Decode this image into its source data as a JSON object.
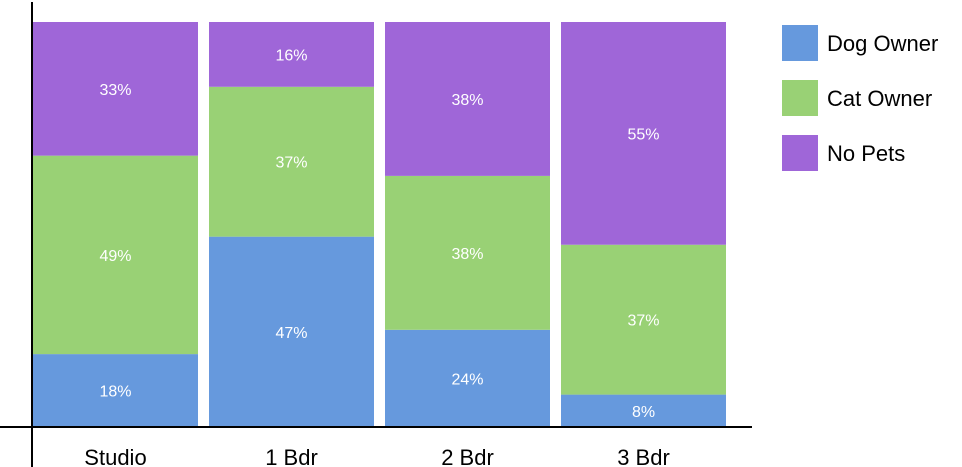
{
  "chart_data": {
    "type": "bar",
    "stacked": true,
    "normalized": true,
    "categories": [
      "Studio",
      "1 Bdr",
      "2 Bdr",
      "3 Bdr"
    ],
    "series": [
      {
        "name": "Dog Owner",
        "color": "#6699dd",
        "values": [
          18,
          47,
          24,
          8
        ]
      },
      {
        "name": "Cat Owner",
        "color": "#99d175",
        "values": [
          49,
          37,
          38,
          37
        ]
      },
      {
        "name": "No Pets",
        "color": "#9f66d8",
        "values": [
          33,
          16,
          38,
          55
        ]
      }
    ],
    "value_suffix": "%",
    "ylim": [
      0,
      100
    ],
    "grid": false,
    "legend_position": "right"
  }
}
